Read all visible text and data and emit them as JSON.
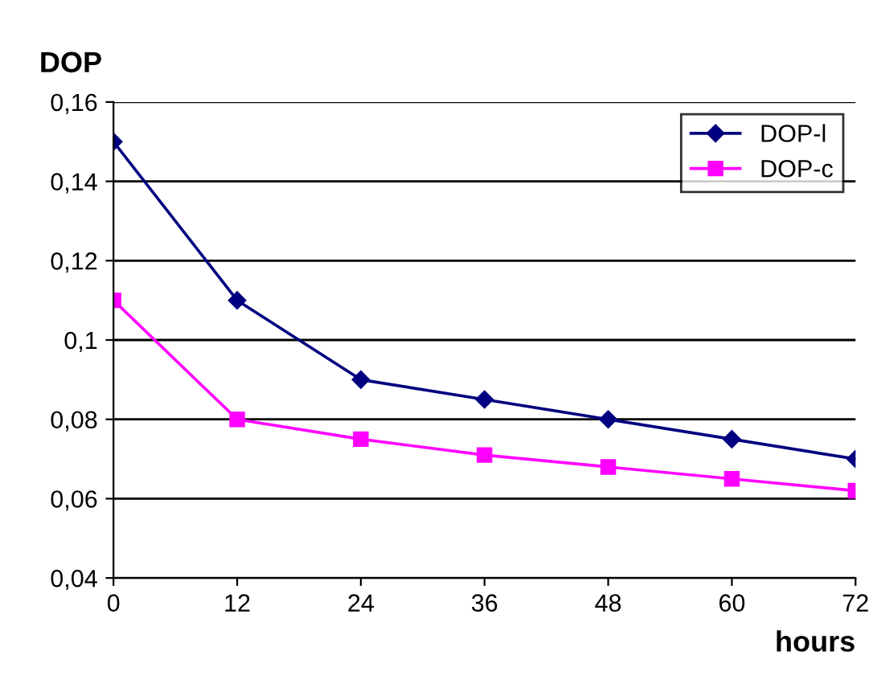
{
  "chart_data": {
    "type": "line",
    "ylabel": "DOP",
    "xlabel": "hours",
    "x": [
      0,
      12,
      24,
      36,
      48,
      60,
      72
    ],
    "series": [
      {
        "name": "DOP-l",
        "color": "#000080",
        "marker": "diamond",
        "values": [
          0.15,
          0.11,
          0.09,
          0.085,
          0.08,
          0.075,
          0.07
        ]
      },
      {
        "name": "DOP-c",
        "color": "#ff00ff",
        "marker": "square",
        "values": [
          0.11,
          0.08,
          0.075,
          0.071,
          0.068,
          0.065,
          0.062
        ]
      }
    ],
    "xlim": [
      0,
      72
    ],
    "xticks": [
      0,
      12,
      24,
      36,
      48,
      60,
      72
    ],
    "ylim": [
      0.04,
      0.16
    ],
    "yticks": [
      {
        "value": 0.04,
        "label": "0,04"
      },
      {
        "value": 0.06,
        "label": "0,06"
      },
      {
        "value": 0.08,
        "label": "0,08"
      },
      {
        "value": 0.1,
        "label": "0,1"
      },
      {
        "value": 0.12,
        "label": "0,12"
      },
      {
        "value": 0.14,
        "label": "0,14"
      },
      {
        "value": 0.16,
        "label": "0,16"
      }
    ],
    "grid": "y",
    "legend": "top right",
    "line_style": "solid"
  }
}
